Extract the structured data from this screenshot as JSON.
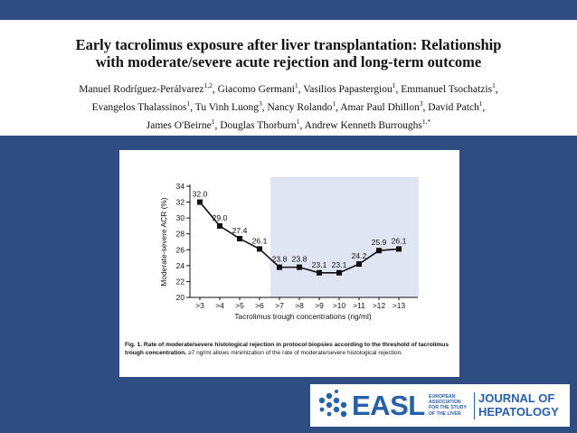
{
  "header": {
    "title_line1": "Early tacrolimus exposure after liver transplantation: Relationship",
    "title_line2": "with moderate/severe acute rejection and long-term outcome"
  },
  "authors": [
    {
      "name": "Manuel Rodríguez-Perálvarez",
      "aff": "1,2",
      "sep": ", "
    },
    {
      "name": "Giacomo Germani",
      "aff": "1",
      "sep": ", "
    },
    {
      "name": "Vasilios Papastergiou",
      "aff": "1",
      "sep": ", "
    },
    {
      "name": "Emmanuel Tsochatzis",
      "aff": "1",
      "sep": ","
    },
    {
      "name": "Evangelos Thalassinos",
      "aff": "1",
      "sep": ", "
    },
    {
      "name": "Tu Vinh Luong",
      "aff": "3",
      "sep": ", "
    },
    {
      "name": "Nancy Rolando",
      "aff": "1",
      "sep": ", "
    },
    {
      "name": "Amar Paul Dhillon",
      "aff": "3",
      "sep": ", "
    },
    {
      "name": "David Patch",
      "aff": "1",
      "sep": ","
    },
    {
      "name": "James O'Beirne",
      "aff": "1",
      "sep": ", "
    },
    {
      "name": "Douglas Thorburn",
      "aff": "1",
      "sep": ", "
    },
    {
      "name": "Andrew Kenneth Burroughs",
      "aff": "1,*",
      "sep": ""
    }
  ],
  "chart_data": {
    "type": "line",
    "categories": [
      ">3",
      ">4",
      ">5",
      ">6",
      ">7",
      ">8",
      ">9",
      ">10",
      ">11",
      ">12",
      ">13"
    ],
    "values": [
      32.0,
      29.0,
      27.4,
      26.1,
      23.8,
      23.8,
      23.1,
      23.1,
      24.2,
      25.9,
      26.1
    ],
    "value_labels": [
      "32.0",
      "29.0",
      "27.4",
      "26.1",
      "23.8",
      "23.8",
      "23.1",
      "23.1",
      "24.2",
      "25.9",
      "26.1"
    ],
    "ylabel": "Moderate-severe ACR (%)",
    "xlabel": "Tacrolimus trough concentrations (ng/ml)",
    "ylim": [
      20,
      34
    ],
    "yticks": [
      "20",
      "22",
      "24",
      "26",
      "28",
      "30",
      "32",
      "34"
    ],
    "shaded_region_from_category": ">7",
    "shade_color": "#dfe5f3",
    "line_color": "#111111",
    "grid": false
  },
  "caption": {
    "label": "Fig. 1.",
    "bold_text": "Rate of moderate/severe histological rejection in protocol biopsies according to the threshold of tacrolimus trough concentration.",
    "threshold": "≥7 ng/ml",
    "plain_text": "allows minimization of the rate of moderate/severe histological rejection."
  },
  "logo": {
    "brand": "EASL",
    "association_lines": [
      "EUROPEAN",
      "ASSOCIATION",
      "FOR THE STUDY",
      "OF THE LIVER"
    ],
    "journal_line1": "JOURNAL OF",
    "journal_line2": "HEPATOLOGY",
    "brand_color": "#2660a8"
  },
  "colors": {
    "background_blue": "#2e4d80"
  }
}
